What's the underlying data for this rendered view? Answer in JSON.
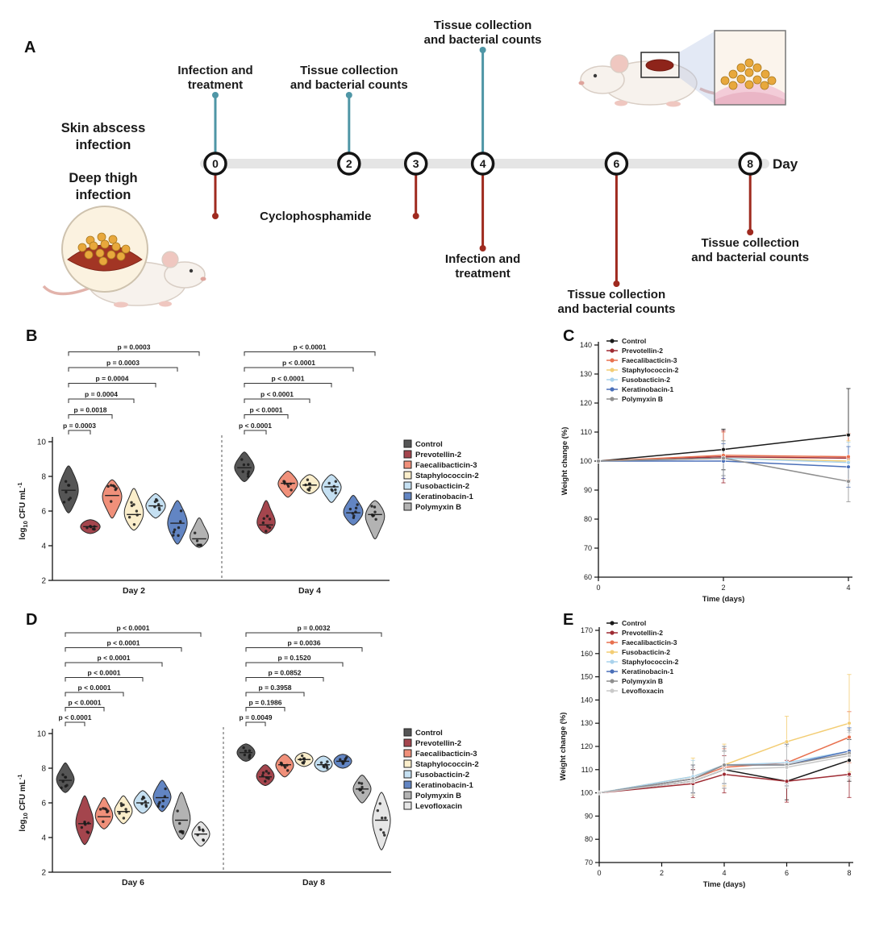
{
  "panel_labels": {
    "a": "A",
    "b": "B",
    "c": "C",
    "d": "D",
    "e": "E"
  },
  "colors": {
    "teal": "#4f96a6",
    "dark_red": "#9f2a1f",
    "series_fill": {
      "Control": "#555555",
      "Prevotellin-2": "#a4454d",
      "Faecalibacticin-3": "#f0907a",
      "Staphylococcin-2": "#fbeecb",
      "Fusobacticin-2": "#c5e0f2",
      "Keratinobacin-1": "#6285c3",
      "Polymyxin B": "#b3b3b3",
      "Levofloxacin": "#e6e6e6"
    }
  },
  "timeline": {
    "day_axis_label": "Day",
    "day_ticks": [
      0,
      2,
      3,
      4,
      6,
      8
    ],
    "skin": {
      "label_lines": [
        "Skin abscess",
        "infection"
      ],
      "events": [
        {
          "day": 0,
          "lines": [
            "Infection and",
            "treatment"
          ]
        },
        {
          "day": 2,
          "lines": [
            "Tissue collection",
            "and bacterial counts"
          ]
        },
        {
          "day": 4,
          "lines": [
            "Tissue collection",
            "and bacterial counts"
          ]
        }
      ]
    },
    "thigh": {
      "label_lines": [
        "Deep thigh",
        "infection"
      ],
      "cyclophosphamide": {
        "label": "Cyclophosphamide",
        "from_day": 0,
        "to_day": 3
      },
      "events": [
        {
          "day": 4,
          "lines": [
            "Infection and",
            "treatment"
          ]
        },
        {
          "day": 6,
          "lines": [
            "Tissue collection",
            "and bacterial counts"
          ]
        },
        {
          "day": 8,
          "lines": [
            "Tissue collection",
            "and bacterial counts"
          ]
        }
      ]
    }
  },
  "chart_data": [
    {
      "id": "B",
      "type": "violin",
      "ylabel_parts": [
        {
          "t": "log"
        },
        {
          "t": "10",
          "sub": true
        },
        {
          "t": " CFU mL"
        },
        {
          "t": "-1",
          "sup": true
        }
      ],
      "ylim": [
        2,
        10
      ],
      "yticks": [
        2,
        4,
        6,
        8,
        10
      ],
      "groups": [
        {
          "label": "Day 2",
          "violins": [
            {
              "name": "Control",
              "median": 7.2,
              "min": 5.9,
              "max": 8.6
            },
            {
              "name": "Prevotellin-2",
              "median": 5.1,
              "min": 4.7,
              "max": 5.5
            },
            {
              "name": "Faecalibacticin-3",
              "median": 6.9,
              "min": 5.6,
              "max": 7.8
            },
            {
              "name": "Staphylococcin-2",
              "median": 5.8,
              "min": 4.9,
              "max": 7.3
            },
            {
              "name": "Fusobacticin-2",
              "median": 6.3,
              "min": 5.6,
              "max": 7.0
            },
            {
              "name": "Keratinobacin-1",
              "median": 5.3,
              "min": 4.1,
              "max": 6.6
            },
            {
              "name": "Polymyxin B",
              "median": 4.4,
              "min": 3.9,
              "max": 5.6
            }
          ],
          "pvalues": [
            "p = 0.0003",
            "p = 0.0018",
            "p = 0.0004",
            "p = 0.0004",
            "p = 0.0003",
            "p = 0.0003"
          ]
        },
        {
          "label": "Day 4",
          "violins": [
            {
              "name": "Control",
              "median": 8.5,
              "min": 7.7,
              "max": 9.4
            },
            {
              "name": "Prevotellin-2",
              "median": 5.2,
              "min": 4.7,
              "max": 6.6
            },
            {
              "name": "Faecalibacticin-3",
              "median": 7.6,
              "min": 6.8,
              "max": 8.3
            },
            {
              "name": "Staphylococcin-2",
              "median": 7.5,
              "min": 7.0,
              "max": 8.1
            },
            {
              "name": "Fusobacticin-2",
              "median": 7.4,
              "min": 6.5,
              "max": 8.1
            },
            {
              "name": "Keratinobacin-1",
              "median": 5.9,
              "min": 5.2,
              "max": 6.9
            },
            {
              "name": "Polymyxin B",
              "median": 5.8,
              "min": 4.4,
              "max": 6.6
            }
          ],
          "pvalues": [
            "p < 0.0001",
            "p < 0.0001",
            "p < 0.0001",
            "p < 0.0001",
            "p < 0.0001",
            "p < 0.0001"
          ]
        }
      ],
      "legend": [
        "Control",
        "Prevotellin-2",
        "Faecalibacticin-3",
        "Staphylococcin-2",
        "Fusobacticin-2",
        "Keratinobacin-1",
        "Polymyxin B"
      ]
    },
    {
      "id": "C",
      "type": "line",
      "xlabel": "Time (days)",
      "ylabel": "Weight change (%)",
      "xlim": [
        0,
        4
      ],
      "ylim": [
        60,
        140
      ],
      "xticks": [
        0,
        2,
        4
      ],
      "yticks": [
        60,
        70,
        80,
        90,
        100,
        110,
        120,
        130,
        140
      ],
      "x": [
        0,
        2,
        4
      ],
      "series": [
        {
          "name": "Control",
          "color": "#1a1a1a",
          "values": [
            100,
            104,
            109
          ],
          "err": [
            0,
            7,
            16
          ]
        },
        {
          "name": "Prevotellin-2",
          "color": "#9e2b33",
          "values": [
            100,
            101.5,
            101
          ],
          "err": [
            0,
            9,
            8
          ]
        },
        {
          "name": "Faecalibacticin-3",
          "color": "#e8714f",
          "values": [
            100,
            102,
            101.5
          ],
          "err": [
            0,
            8,
            8
          ]
        },
        {
          "name": "Staphylococcin-2",
          "color": "#f3cd74",
          "values": [
            100,
            101,
            100
          ],
          "err": [
            0,
            6,
            7
          ]
        },
        {
          "name": "Fusobacticin-2",
          "color": "#a9d2ec",
          "values": [
            100,
            101,
            99.5
          ],
          "err": [
            0,
            6,
            7
          ]
        },
        {
          "name": "Keratinobacin-1",
          "color": "#4a6fb8",
          "values": [
            100,
            100,
            98
          ],
          "err": [
            0,
            6,
            7
          ]
        },
        {
          "name": "Polymyxin B",
          "color": "#8f8f8f",
          "values": [
            100,
            101,
            93
          ],
          "err": [
            0,
            6,
            7
          ]
        }
      ]
    },
    {
      "id": "D",
      "type": "violin",
      "ylabel_parts": [
        {
          "t": "log"
        },
        {
          "t": "10",
          "sub": true
        },
        {
          "t": " CFU mL"
        },
        {
          "t": "-1",
          "sup": true
        }
      ],
      "ylim": [
        2,
        10
      ],
      "yticks": [
        2,
        4,
        6,
        8,
        10
      ],
      "groups": [
        {
          "label": "Day 6",
          "violins": [
            {
              "name": "Control",
              "median": 7.3,
              "min": 6.6,
              "max": 8.3
            },
            {
              "name": "Prevotellin-2",
              "median": 4.8,
              "min": 3.6,
              "max": 6.4
            },
            {
              "name": "Faecalibacticin-3",
              "median": 5.2,
              "min": 4.5,
              "max": 6.3
            },
            {
              "name": "Staphylococcin-2",
              "median": 5.5,
              "min": 4.8,
              "max": 6.4
            },
            {
              "name": "Fusobacticin-2",
              "median": 6.0,
              "min": 5.4,
              "max": 6.7
            },
            {
              "name": "Keratinobacin-1",
              "median": 6.3,
              "min": 5.5,
              "max": 7.3
            },
            {
              "name": "Polymyxin B",
              "median": 5.0,
              "min": 3.9,
              "max": 6.6
            },
            {
              "name": "Levofloxacin",
              "median": 4.2,
              "min": 3.5,
              "max": 4.9
            }
          ],
          "pvalues": [
            "p < 0.0001",
            "p < 0.0001",
            "p < 0.0001",
            "p < 0.0001",
            "p < 0.0001",
            "p < 0.0001",
            "p < 0.0001"
          ]
        },
        {
          "label": "Day 8",
          "violins": [
            {
              "name": "Control",
              "median": 8.9,
              "min": 8.4,
              "max": 9.4
            },
            {
              "name": "Prevotellin-2",
              "median": 7.5,
              "min": 7.0,
              "max": 8.2
            },
            {
              "name": "Faecalibacticin-3",
              "median": 8.2,
              "min": 7.5,
              "max": 8.8
            },
            {
              "name": "Staphylococcin-2",
              "median": 8.5,
              "min": 8.1,
              "max": 8.9
            },
            {
              "name": "Fusobacticin-2",
              "median": 8.2,
              "min": 7.8,
              "max": 8.7
            },
            {
              "name": "Keratinobacin-1",
              "median": 8.4,
              "min": 8.0,
              "max": 8.8
            },
            {
              "name": "Polymyxin B",
              "median": 6.8,
              "min": 6.0,
              "max": 7.6
            },
            {
              "name": "Levofloxacin",
              "median": 5.0,
              "min": 3.3,
              "max": 6.6
            }
          ],
          "pvalues": [
            "p = 0.0049",
            "p = 0.1986",
            "p = 0.3958",
            "p = 0.0852",
            "p = 0.1520",
            "p = 0.0036",
            "p = 0.0032"
          ]
        }
      ],
      "legend": [
        "Control",
        "Prevotellin-2",
        "Faecalibacticin-3",
        "Staphylococcin-2",
        "Fusobacticin-2",
        "Keratinobacin-1",
        "Polymyxin B",
        "Levofloxacin"
      ]
    },
    {
      "id": "E",
      "type": "line",
      "xlabel": "Time (days)",
      "ylabel": "Weight change (%)",
      "xlim": [
        0,
        8
      ],
      "ylim": [
        70,
        170
      ],
      "xticks": [
        0,
        2,
        4,
        6,
        8
      ],
      "yticks": [
        70,
        80,
        90,
        100,
        110,
        120,
        130,
        140,
        150,
        160,
        170
      ],
      "x": [
        0,
        3,
        4,
        6,
        8
      ],
      "series": [
        {
          "name": "Control",
          "color": "#1a1a1a",
          "values": [
            100,
            105,
            110,
            105,
            114
          ],
          "err": [
            0,
            5,
            8,
            8,
            9
          ]
        },
        {
          "name": "Prevotellin-2",
          "color": "#9e2b33",
          "values": [
            100,
            104,
            108,
            105,
            108
          ],
          "err": [
            0,
            6,
            8,
            9,
            10
          ]
        },
        {
          "name": "Faecalibacticin-3",
          "color": "#e8714f",
          "values": [
            100,
            106,
            111,
            113,
            124
          ],
          "err": [
            0,
            6,
            8,
            9,
            11
          ]
        },
        {
          "name": "Fusobacticin-2",
          "color": "#f3cd74",
          "values": [
            100,
            107,
            112,
            122,
            130
          ],
          "err": [
            0,
            8,
            9,
            11,
            21
          ]
        },
        {
          "name": "Staphylococcin-2",
          "color": "#a9d2ec",
          "values": [
            100,
            107,
            112,
            113,
            118
          ],
          "err": [
            0,
            7,
            8,
            9,
            10
          ]
        },
        {
          "name": "Keratinobacin-1",
          "color": "#4a6fb8",
          "values": [
            100,
            106,
            112,
            112,
            118
          ],
          "err": [
            0,
            6,
            8,
            9,
            10
          ]
        },
        {
          "name": "Polymyxin B",
          "color": "#8f8f8f",
          "values": [
            100,
            106,
            112,
            112,
            117
          ],
          "err": [
            0,
            6,
            8,
            9,
            10
          ]
        },
        {
          "name": "Levofloxacin",
          "color": "#c9c9c9",
          "values": [
            100,
            105,
            110,
            111,
            116
          ],
          "err": [
            0,
            6,
            8,
            9,
            10
          ]
        }
      ]
    }
  ]
}
